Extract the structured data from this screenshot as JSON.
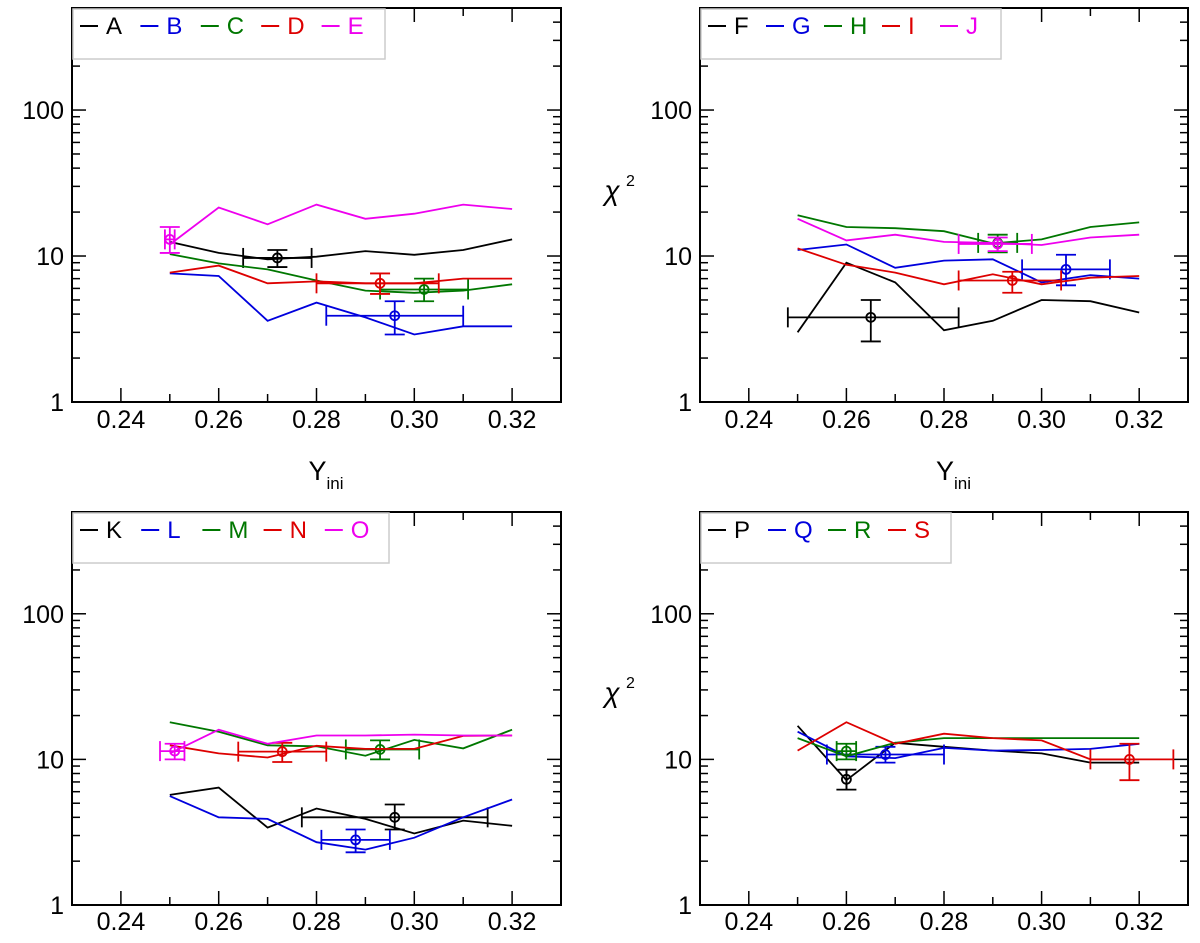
{
  "chart_data": [
    {
      "type": "line",
      "xlabel": "Y",
      "xlabel_sub": "ini",
      "ylabel": "",
      "yscale": "log",
      "xlim": [
        0.23,
        0.33
      ],
      "ylim": [
        1,
        500
      ],
      "xticks": [
        "0.24",
        "0.26",
        "0.28",
        "0.30",
        "0.32"
      ],
      "yticks": [
        "1",
        "10",
        "100"
      ],
      "legend_position": "top-left",
      "x": [
        0.25,
        0.26,
        0.27,
        0.28,
        0.29,
        0.3,
        0.31,
        0.32
      ],
      "series": [
        {
          "name": "A",
          "color": "#000000",
          "values": [
            12.5,
            10.5,
            9.5,
            9.9,
            10.8,
            10.2,
            11.0,
            13.0
          ],
          "point": {
            "x": 0.272,
            "y": 9.7,
            "xerr": [
              0.265,
              0.279
            ],
            "yerr": [
              8.4,
              11.0
            ]
          }
        },
        {
          "name": "B",
          "color": "#0000dd",
          "values": [
            7.6,
            7.3,
            3.6,
            4.8,
            3.8,
            2.9,
            3.3,
            3.3
          ],
          "point": {
            "x": 0.296,
            "y": 3.9,
            "xerr": [
              0.282,
              0.31
            ],
            "yerr": [
              2.9,
              4.9
            ]
          }
        },
        {
          "name": "C",
          "color": "#007700",
          "values": [
            10.3,
            8.9,
            8.1,
            6.8,
            5.8,
            5.6,
            5.8,
            6.4
          ],
          "point": {
            "x": 0.302,
            "y": 5.9,
            "xerr": [
              0.293,
              0.311
            ],
            "yerr": [
              4.9,
              7.0
            ]
          }
        },
        {
          "name": "D",
          "color": "#dd0000",
          "values": [
            7.7,
            8.6,
            6.5,
            6.7,
            6.5,
            6.5,
            7.0,
            7.0
          ],
          "point": {
            "x": 0.293,
            "y": 6.5,
            "xerr": [
              0.28,
              0.305
            ],
            "yerr": [
              5.5,
              7.6
            ]
          }
        },
        {
          "name": "E",
          "color": "#ee00ee",
          "values": [
            12.0,
            21.5,
            16.5,
            22.5,
            18.0,
            19.5,
            22.5,
            21.0
          ],
          "point": {
            "x": 0.25,
            "y": 13.0,
            "xerr": [
              0.249,
              0.251
            ],
            "yerr": [
              10.5,
              15.8
            ]
          }
        }
      ]
    },
    {
      "type": "line",
      "xlabel": "Y",
      "xlabel_sub": "ini",
      "ylabel": "χ",
      "ylabel_sup": "2",
      "yscale": "log",
      "xlim": [
        0.23,
        0.33
      ],
      "ylim": [
        1,
        500
      ],
      "xticks": [
        "0.24",
        "0.26",
        "0.28",
        "0.30",
        "0.32"
      ],
      "yticks": [
        "1",
        "10",
        "100"
      ],
      "legend_position": "top-left",
      "x": [
        0.25,
        0.26,
        0.27,
        0.28,
        0.29,
        0.3,
        0.31,
        0.32
      ],
      "series": [
        {
          "name": "F",
          "color": "#000000",
          "values": [
            3.0,
            9.0,
            6.6,
            3.1,
            3.6,
            5.0,
            4.9,
            4.1
          ],
          "point": {
            "x": 0.265,
            "y": 3.8,
            "xerr": [
              0.248,
              0.283
            ],
            "yerr": [
              2.6,
              5.0
            ]
          }
        },
        {
          "name": "G",
          "color": "#0000dd",
          "values": [
            11.0,
            12.0,
            8.3,
            9.3,
            9.5,
            6.6,
            7.4,
            7.0
          ],
          "point": {
            "x": 0.305,
            "y": 8.1,
            "xerr": [
              0.296,
              0.314
            ],
            "yerr": [
              6.3,
              10.2
            ]
          }
        },
        {
          "name": "H",
          "color": "#007700",
          "values": [
            19.0,
            15.8,
            15.5,
            14.8,
            12.2,
            13.0,
            15.8,
            17.0
          ],
          "point": {
            "x": 0.291,
            "y": 12.3,
            "xerr": [
              0.287,
              0.295
            ],
            "yerr": [
              10.6,
              14.0
            ]
          }
        },
        {
          "name": "I",
          "color": "#dd0000",
          "values": [
            11.3,
            8.7,
            7.7,
            6.4,
            7.5,
            6.4,
            7.1,
            7.3
          ],
          "point": {
            "x": 0.294,
            "y": 6.8,
            "xerr": [
              0.283,
              0.304
            ],
            "yerr": [
              5.6,
              7.8
            ]
          }
        },
        {
          "name": "J",
          "color": "#ee00ee",
          "values": [
            18.0,
            12.8,
            14.0,
            12.5,
            12.3,
            11.9,
            13.4,
            14.0
          ],
          "point": {
            "x": 0.291,
            "y": 12.1,
            "xerr": [
              0.283,
              0.298
            ],
            "yerr": [
              10.8,
              13.4
            ]
          }
        }
      ]
    },
    {
      "type": "line",
      "xlabel": "",
      "ylabel": "",
      "yscale": "log",
      "xlim": [
        0.23,
        0.33
      ],
      "ylim": [
        1,
        500
      ],
      "xticks": [
        "0.24",
        "0.26",
        "0.28",
        "0.30",
        "0.32"
      ],
      "yticks": [
        "1",
        "10",
        "100"
      ],
      "legend_position": "top-left",
      "x": [
        0.25,
        0.26,
        0.27,
        0.28,
        0.29,
        0.3,
        0.31,
        0.32
      ],
      "series": [
        {
          "name": "K",
          "color": "#000000",
          "values": [
            5.7,
            6.4,
            3.4,
            4.6,
            3.9,
            3.1,
            3.8,
            3.5
          ],
          "point": {
            "x": 0.296,
            "y": 4.0,
            "xerr": [
              0.277,
              0.315
            ],
            "yerr": [
              3.3,
              4.9
            ]
          }
        },
        {
          "name": "L",
          "color": "#0000dd",
          "values": [
            5.6,
            4.0,
            3.9,
            2.7,
            2.4,
            2.9,
            4.0,
            5.3
          ],
          "point": {
            "x": 0.288,
            "y": 2.8,
            "xerr": [
              0.281,
              0.295
            ],
            "yerr": [
              2.3,
              3.3
            ]
          }
        },
        {
          "name": "M",
          "color": "#007700",
          "values": [
            18.0,
            15.5,
            12.5,
            12.3,
            10.6,
            13.6,
            11.9,
            16.0
          ],
          "point": {
            "x": 0.293,
            "y": 11.7,
            "xerr": [
              0.286,
              0.301
            ],
            "yerr": [
              10.0,
              13.5
            ]
          }
        },
        {
          "name": "N",
          "color": "#dd0000",
          "values": [
            12.5,
            11.0,
            10.3,
            12.4,
            11.8,
            11.8,
            14.5,
            14.6
          ],
          "point": {
            "x": 0.273,
            "y": 11.3,
            "xerr": [
              0.264,
              0.282
            ],
            "yerr": [
              9.6,
              13.0
            ]
          }
        },
        {
          "name": "O",
          "color": "#ee00ee",
          "values": [
            11.0,
            16.0,
            12.8,
            14.6,
            14.6,
            14.8,
            14.6,
            14.6
          ],
          "point": {
            "x": 0.251,
            "y": 11.4,
            "xerr": [
              0.248,
              0.253
            ],
            "yerr": [
              10.0,
              12.8
            ]
          }
        }
      ]
    },
    {
      "type": "line",
      "xlabel": "",
      "ylabel": "χ",
      "ylabel_sup": "2",
      "yscale": "log",
      "xlim": [
        0.23,
        0.33
      ],
      "ylim": [
        1,
        500
      ],
      "xticks": [
        "0.24",
        "0.26",
        "0.28",
        "0.30",
        "0.32"
      ],
      "yticks": [
        "1",
        "10",
        "100"
      ],
      "legend_position": "top-left",
      "x": [
        0.25,
        0.26,
        0.27,
        0.28,
        0.29,
        0.3,
        0.31,
        0.32
      ],
      "series": [
        {
          "name": "P",
          "color": "#000000",
          "values": [
            17.0,
            7.2,
            13.0,
            12.2,
            11.5,
            11.0,
            9.5,
            9.5
          ],
          "point": {
            "x": 0.26,
            "y": 7.3,
            "xerr": [
              0.26,
              0.26
            ],
            "yerr": [
              6.2,
              8.5
            ]
          }
        },
        {
          "name": "Q",
          "color": "#0000dd",
          "values": [
            15.5,
            10.5,
            10.2,
            12.0,
            11.5,
            11.6,
            11.8,
            12.8
          ],
          "point": {
            "x": 0.268,
            "y": 10.8,
            "xerr": [
              0.256,
              0.28
            ],
            "yerr": [
              9.5,
              12.2
            ]
          }
        },
        {
          "name": "R",
          "color": "#007700",
          "values": [
            14.0,
            10.5,
            13.0,
            14.0,
            14.0,
            14.0,
            14.0,
            14.0
          ],
          "point": {
            "x": 0.26,
            "y": 11.4,
            "xerr": [
              0.258,
              0.262
            ],
            "yerr": [
              10.0,
              12.8
            ]
          }
        },
        {
          "name": "S",
          "color": "#dd0000",
          "values": [
            11.5,
            18.0,
            12.8,
            15.0,
            14.0,
            13.5,
            10.0,
            10.0
          ],
          "point": {
            "x": 0.318,
            "y": 10.0,
            "xerr": [
              0.31,
              0.327
            ],
            "yerr": [
              7.2,
              12.8
            ]
          }
        }
      ]
    }
  ]
}
